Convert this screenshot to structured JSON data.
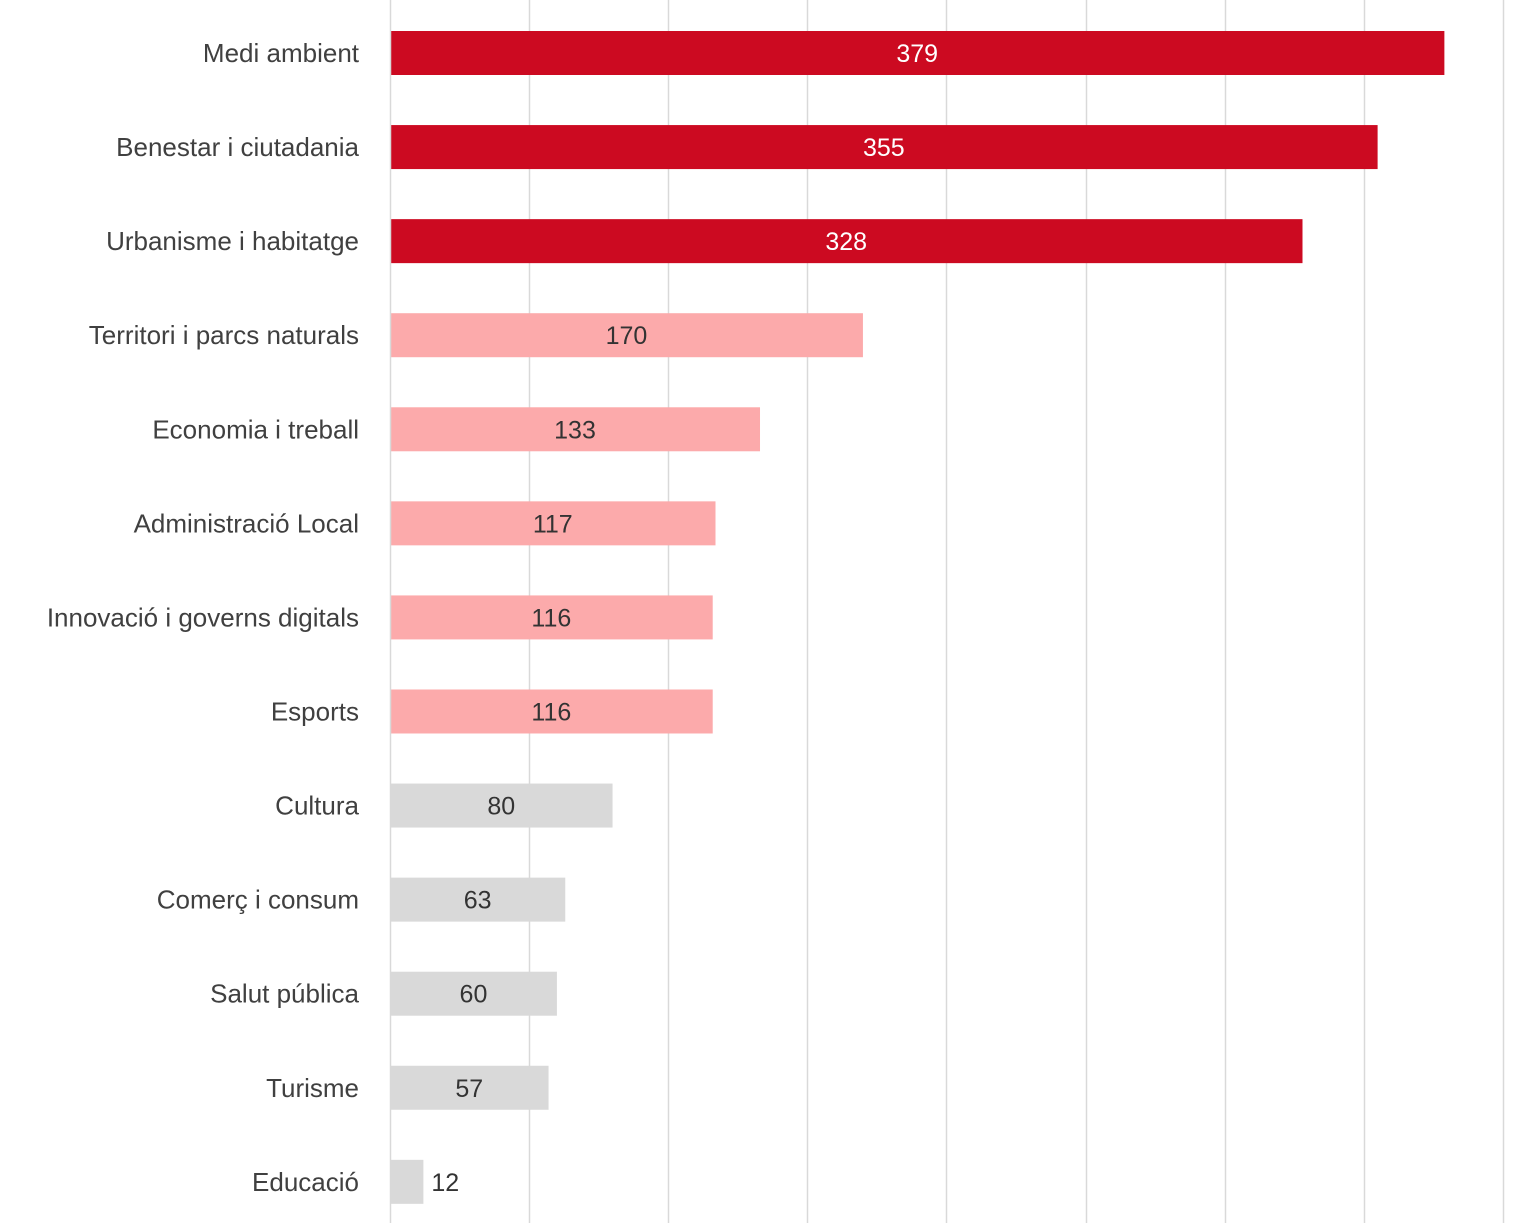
{
  "chart_data": {
    "type": "bar",
    "orientation": "horizontal",
    "title": "",
    "xlabel": "",
    "ylabel": "",
    "xlim": [
      0,
      400
    ],
    "grid": true,
    "legend": "none",
    "categories": [
      "Medi ambient",
      "Benestar i ciutadania",
      "Urbanisme i habitatge",
      "Territori i parcs naturals",
      "Economia i treball",
      "Administració Local",
      "Innovació i governs digitals",
      "Esports",
      "Cultura",
      "Comerç i consum",
      "Salut pública",
      "Turisme",
      "Educació"
    ],
    "values": [
      379,
      355,
      328,
      170,
      133,
      117,
      116,
      116,
      80,
      63,
      60,
      57,
      12
    ],
    "bar_colors": [
      "#cc0a21",
      "#cc0a21",
      "#cc0a21",
      "#fcaaab",
      "#fcaaab",
      "#fcaaab",
      "#fcaaab",
      "#fcaaab",
      "#d9d9d9",
      "#d9d9d9",
      "#d9d9d9",
      "#d9d9d9",
      "#d9d9d9"
    ],
    "label_colors": [
      "#ffffff",
      "#ffffff",
      "#ffffff",
      "#333333",
      "#333333",
      "#333333",
      "#333333",
      "#333333",
      "#333333",
      "#333333",
      "#333333",
      "#333333",
      "#333333"
    ],
    "grid_color": "#d9d9d9",
    "category_label_color": "#404040"
  }
}
